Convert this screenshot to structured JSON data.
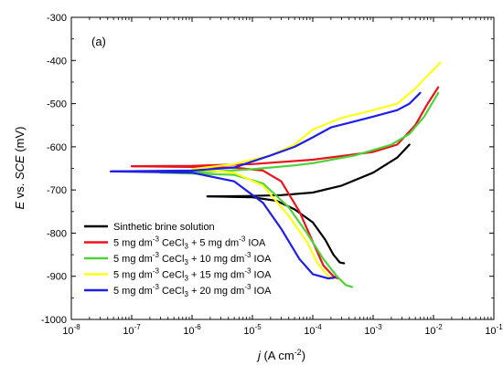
{
  "chart_data": {
    "type": "line",
    "panel_label": "(a)",
    "xlabel": {
      "italic": "j",
      "text": " (A cm",
      "sup": "-2",
      "tail": ")"
    },
    "ylabel": {
      "italic_lead": "E",
      "mid": " vs. ",
      "italic_tail": "SCE",
      "tail": " (mV)"
    },
    "x_scale": "log",
    "xlim": [
      1e-08,
      0.1
    ],
    "ylim": [
      -1000,
      -300
    ],
    "x_ticks": [
      {
        "value": 1e-08,
        "base": "10",
        "exp": "-8"
      },
      {
        "value": 1e-07,
        "base": "10",
        "exp": "-7"
      },
      {
        "value": 1e-06,
        "base": "10",
        "exp": "-6"
      },
      {
        "value": 1e-05,
        "base": "10",
        "exp": "-5"
      },
      {
        "value": 0.0001,
        "base": "10",
        "exp": "-4"
      },
      {
        "value": 0.001,
        "base": "10",
        "exp": "-3"
      },
      {
        "value": 0.01,
        "base": "10",
        "exp": "-2"
      },
      {
        "value": 0.1,
        "base": "10",
        "exp": "-1"
      }
    ],
    "y_ticks": [
      -1000,
      -900,
      -800,
      -700,
      -600,
      -500,
      -400,
      -300
    ],
    "y_tick_labels": [
      "-1000",
      "-900",
      "-800",
      "-700",
      "-600",
      "-500",
      "-400",
      "-300"
    ],
    "legend_position": "lower-left",
    "series": [
      {
        "name": "Sinthetic brine solution",
        "legend": {
          "pre": "Sinthetic brine solution"
        },
        "color": "#000000",
        "anodic": [
          [
            1.8e-06,
            -715
          ],
          [
            8e-06,
            -714
          ],
          [
            3e-05,
            -712
          ],
          [
            0.0001,
            -706
          ],
          [
            0.0003,
            -690
          ],
          [
            0.001,
            -660
          ],
          [
            0.0025,
            -625
          ],
          [
            0.004,
            -595
          ]
        ],
        "cathodic": [
          [
            1.8e-06,
            -715
          ],
          [
            1e-05,
            -717
          ],
          [
            2.5e-05,
            -725
          ],
          [
            5e-05,
            -745
          ],
          [
            0.0001,
            -775
          ],
          [
            0.00016,
            -815
          ],
          [
            0.00022,
            -850
          ],
          [
            0.00028,
            -868
          ],
          [
            0.00033,
            -870
          ]
        ]
      },
      {
        "name": "5 mg dm-3 CeCl3 + 5 mg dm-3 IOA",
        "legend": {
          "pre": "5 mg dm",
          "s1": "-3",
          "mid": " CeCl",
          "sub": "3",
          "post": " + 5 mg dm",
          "s2": "-3",
          "tail": " IOA"
        },
        "color": "#e8141c",
        "anodic": [
          [
            1e-07,
            -645
          ],
          [
            1e-06,
            -644
          ],
          [
            1e-05,
            -640
          ],
          [
            0.0001,
            -630
          ],
          [
            0.001,
            -612
          ],
          [
            0.0025,
            -595
          ],
          [
            0.005,
            -550
          ],
          [
            0.008,
            -500
          ],
          [
            0.012,
            -462
          ]
        ],
        "cathodic": [
          [
            1e-07,
            -645
          ],
          [
            5e-06,
            -648
          ],
          [
            1.5e-05,
            -655
          ],
          [
            3e-05,
            -680
          ],
          [
            6e-05,
            -750
          ],
          [
            0.0001,
            -820
          ],
          [
            0.00015,
            -875
          ],
          [
            0.00022,
            -900
          ],
          [
            0.00026,
            -905
          ]
        ]
      },
      {
        "name": "5 mg dm-3 CeCl3 + 10 mg dm-3 IOA",
        "legend": {
          "pre": "5 mg dm",
          "s1": "-3",
          "mid": " CeCl",
          "sub": "3",
          "post": " + 10 mg dm",
          "s2": "-3",
          "tail": " IOA"
        },
        "color": "#4fd13a",
        "anodic": [
          [
            3e-07,
            -660
          ],
          [
            2e-06,
            -658
          ],
          [
            1e-05,
            -652
          ],
          [
            5e-05,
            -643
          ],
          [
            0.0001,
            -638
          ],
          [
            0.0005,
            -620
          ],
          [
            0.002,
            -595
          ],
          [
            0.004,
            -570
          ],
          [
            0.007,
            -530
          ],
          [
            0.012,
            -475
          ]
        ],
        "cathodic": [
          [
            3e-07,
            -660
          ],
          [
            5e-06,
            -665
          ],
          [
            1.5e-05,
            -685
          ],
          [
            4e-05,
            -740
          ],
          [
            8e-05,
            -800
          ],
          [
            0.00015,
            -860
          ],
          [
            0.00025,
            -900
          ],
          [
            0.00035,
            -920
          ],
          [
            0.00045,
            -925
          ]
        ]
      },
      {
        "name": "5 mg dm-3 CeCl3 + 15 mg dm-3 IOA",
        "legend": {
          "pre": "5 mg dm",
          "s1": "-3",
          "mid": " CeCl",
          "sub": "3",
          "post": " + 15 mg dm",
          "s2": "-3",
          "tail": " IOA"
        },
        "color": "#ffff1a",
        "anodic": [
          [
            1e-06,
            -652
          ],
          [
            5e-06,
            -640
          ],
          [
            2e-05,
            -620
          ],
          [
            5e-05,
            -595
          ],
          [
            0.0001,
            -560
          ],
          [
            0.0003,
            -533
          ],
          [
            0.001,
            -515
          ],
          [
            0.0025,
            -500
          ],
          [
            0.005,
            -465
          ],
          [
            0.008,
            -435
          ],
          [
            0.013,
            -405
          ]
        ],
        "cathodic": [
          [
            1e-06,
            -652
          ],
          [
            5e-06,
            -660
          ],
          [
            1.5e-05,
            -690
          ],
          [
            4e-05,
            -760
          ],
          [
            8e-05,
            -820
          ],
          [
            0.00012,
            -870
          ],
          [
            0.00018,
            -900
          ],
          [
            0.00022,
            -905
          ]
        ]
      },
      {
        "name": "5 mg dm-3 CeCl3 + 20 mg dm-3 IOA",
        "legend": {
          "pre": "5 mg dm",
          "s1": "-3",
          "mid": " CeCl",
          "sub": "3",
          "post": " + 20 mg dm",
          "s2": "-3",
          "tail": " IOA"
        },
        "color": "#1e1ee6",
        "anodic": [
          [
            4.5e-08,
            -657
          ],
          [
            2e-07,
            -656
          ],
          [
            1e-06,
            -655
          ],
          [
            5e-06,
            -648
          ],
          [
            2e-05,
            -620
          ],
          [
            5e-05,
            -600
          ],
          [
            0.0001,
            -578
          ],
          [
            0.0002,
            -555
          ],
          [
            0.001,
            -530
          ],
          [
            0.0025,
            -515
          ],
          [
            0.004,
            -500
          ],
          [
            0.006,
            -475
          ]
        ],
        "cathodic": [
          [
            4.5e-08,
            -657
          ],
          [
            1e-06,
            -660
          ],
          [
            5e-06,
            -680
          ],
          [
            1.5e-05,
            -730
          ],
          [
            3e-05,
            -790
          ],
          [
            6e-05,
            -860
          ],
          [
            0.0001,
            -895
          ],
          [
            0.00018,
            -905
          ],
          [
            0.00023,
            -903
          ]
        ]
      }
    ]
  }
}
